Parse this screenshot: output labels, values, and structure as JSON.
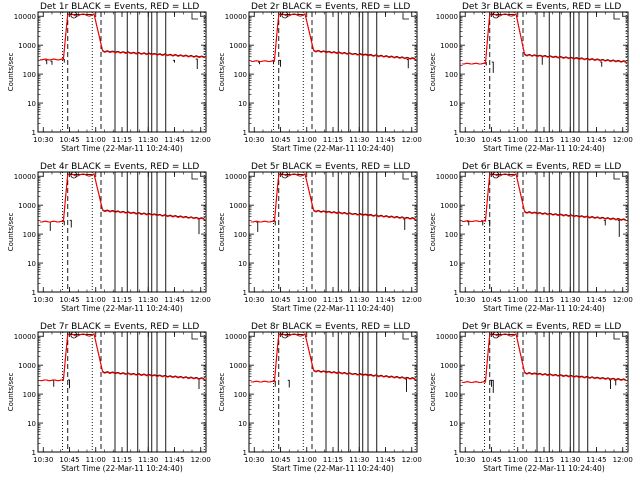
{
  "page": {
    "background": "#ffffff",
    "axis_color": "#000000"
  },
  "chart_data": {
    "type": "line",
    "layout": "3x3 grid of panels",
    "x_ticks": [
      "10:30",
      "10:45",
      "11:00",
      "11:15",
      "11:30",
      "11:45",
      "12:00"
    ],
    "x_range_minutes_after_1030": [
      -3,
      93
    ],
    "y_scale": "log",
    "y_ticks": [
      "1",
      "10",
      "100",
      "1000",
      "10000"
    ],
    "y_range": [
      1,
      14000
    ],
    "ylabel": "Counts/sec",
    "xlabel": "Start Time (22-Mar-11 10:24:40)",
    "colors": {
      "events": "#000000",
      "lld": "#ff0000"
    },
    "dotted_verticals_minutes": [
      11,
      28,
      92
    ],
    "dashed_verticals_minutes": [
      14,
      33
    ],
    "solid_verticals_minutes": [
      41,
      48,
      54,
      60,
      62,
      65,
      70
    ],
    "marker_circle": {
      "x_minutes": 17.5,
      "y": 11000
    },
    "panels": [
      {
        "title": "Det 1r BLACK = Events, RED = LLD",
        "base": 320,
        "peak": 12000,
        "post": 600,
        "tail": 380,
        "black_dips": [
          [
            2,
            220,
            300
          ],
          [
            5,
            210,
            280
          ],
          [
            12,
            250,
            320
          ],
          [
            75,
            250,
            300
          ],
          [
            88,
            150,
            330
          ]
        ]
      },
      {
        "title": "Det 2r BLACK = Events, RED = LLD",
        "base": 280,
        "peak": 12000,
        "post": 620,
        "tail": 330,
        "black_dips": [
          [
            3,
            220,
            260
          ],
          [
            11,
            220,
            290
          ],
          [
            15,
            180,
            300
          ],
          [
            88,
            160,
            320
          ]
        ]
      },
      {
        "title": "Det 3r BLACK = Events, RED = LLD",
        "base": 230,
        "peak": 12000,
        "post": 450,
        "tail": 260,
        "black_dips": [
          [
            12,
            200,
            250
          ],
          [
            16,
            110,
            260
          ],
          [
            44,
            210,
            420
          ],
          [
            78,
            180,
            260
          ]
        ]
      },
      {
        "title": "Det 4r BLACK = Events, RED = LLD",
        "base": 270,
        "peak": 12000,
        "post": 640,
        "tail": 330,
        "black_dips": [
          [
            4,
            130,
            260
          ],
          [
            12,
            200,
            280
          ],
          [
            16,
            170,
            300
          ],
          [
            89,
            100,
            330
          ]
        ]
      },
      {
        "title": "Det 5r BLACK = Events, RED = LLD",
        "base": 270,
        "peak": 12000,
        "post": 620,
        "tail": 330,
        "black_dips": [
          [
            2,
            120,
            260
          ],
          [
            12,
            200,
            280
          ],
          [
            86,
            140,
            330
          ]
        ]
      },
      {
        "title": "Det 6r BLACK = Events, RED = LLD",
        "base": 280,
        "peak": 12000,
        "post": 560,
        "tail": 300,
        "black_dips": [
          [
            2,
            200,
            270
          ],
          [
            10,
            200,
            290
          ],
          [
            14,
            180,
            290
          ],
          [
            80,
            200,
            300
          ],
          [
            88,
            80,
            300
          ]
        ]
      },
      {
        "title": "Det 7r BLACK = Events, RED = LLD",
        "base": 300,
        "peak": 12000,
        "post": 560,
        "tail": 330,
        "black_dips": [
          [
            6,
            180,
            300
          ],
          [
            15,
            160,
            310
          ],
          [
            89,
            150,
            330
          ]
        ]
      },
      {
        "title": "Det 8r BLACK = Events, RED = LLD",
        "base": 270,
        "peak": 12000,
        "post": 620,
        "tail": 330,
        "black_dips": [
          [
            12,
            180,
            280
          ],
          [
            20,
            170,
            300
          ],
          [
            87,
            120,
            330
          ]
        ]
      },
      {
        "title": "Det 9r BLACK = Events, RED = LLD",
        "base": 260,
        "peak": 12000,
        "post": 520,
        "tail": 300,
        "black_dips": [
          [
            15,
            180,
            300
          ],
          [
            16,
            110,
            300
          ],
          [
            83,
            150,
            310
          ],
          [
            86,
            200,
            300
          ]
        ]
      }
    ]
  }
}
